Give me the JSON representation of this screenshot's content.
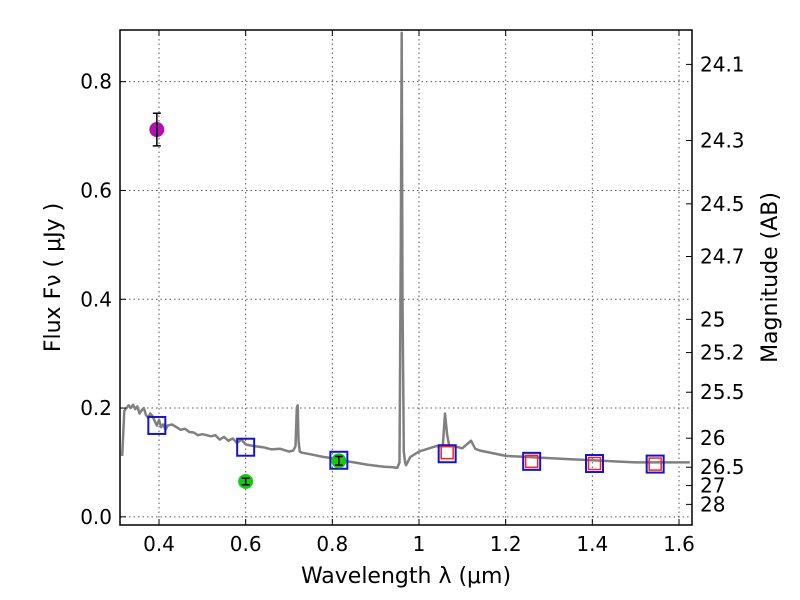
{
  "chart_data": {
    "type": "line",
    "title": "",
    "xlabel": "Wavelength  λ (μm)",
    "ylabel": "Flux  Fν  ( μJy )",
    "ylabel_right": "Magnitude (AB)",
    "xlim": [
      0.31,
      1.63
    ],
    "ylim": [
      -0.015,
      0.895
    ],
    "grid": true,
    "x_ticks": [
      0.4,
      0.6,
      0.8,
      1.0,
      1.2,
      1.4,
      1.6
    ],
    "x_tick_labels": [
      "0.4",
      "0.6",
      "0.8",
      "1",
      "1.2",
      "1.4",
      "1.6"
    ],
    "y_ticks": [
      0.0,
      0.2,
      0.4,
      0.6,
      0.8
    ],
    "y_tick_labels": [
      "0.0",
      "0.2",
      "0.4",
      "0.6",
      "0.8"
    ],
    "right_ticks": [
      {
        "label": "24.1",
        "mag": 24.1
      },
      {
        "label": "24.3",
        "mag": 24.3
      },
      {
        "label": "24.5",
        "mag": 24.5
      },
      {
        "label": "24.7",
        "mag": 24.7
      },
      {
        "label": "25",
        "mag": 25.0
      },
      {
        "label": "25.2",
        "mag": 25.2
      },
      {
        "label": "25.5",
        "mag": 25.5
      },
      {
        "label": "26",
        "mag": 26.0
      },
      {
        "label": "26.5",
        "mag": 26.5
      },
      {
        "label": "27",
        "mag": 27.0
      },
      {
        "label": "28",
        "mag": 28.0
      }
    ],
    "colors": {
      "model": "#808080",
      "model_photometry": "#1414c8",
      "observed_red": "#ff1e1e",
      "upper_point": "#b40fb4",
      "green_point": "#14c814",
      "error_bar": "#000000",
      "grid": "#000000",
      "frame": "#000000"
    },
    "series": [
      {
        "name": "model spectrum",
        "type": "line",
        "x": [
          0.315,
          0.32,
          0.325,
          0.33,
          0.335,
          0.34,
          0.345,
          0.35,
          0.355,
          0.36,
          0.365,
          0.37,
          0.375,
          0.38,
          0.385,
          0.39,
          0.395,
          0.4,
          0.405,
          0.41,
          0.415,
          0.42,
          0.43,
          0.44,
          0.45,
          0.46,
          0.47,
          0.48,
          0.49,
          0.5,
          0.51,
          0.52,
          0.53,
          0.54,
          0.55,
          0.56,
          0.57,
          0.58,
          0.59,
          0.6,
          0.62,
          0.64,
          0.66,
          0.68,
          0.7,
          0.71,
          0.715,
          0.718,
          0.72,
          0.722,
          0.725,
          0.73,
          0.75,
          0.78,
          0.8,
          0.82,
          0.85,
          0.88,
          0.9,
          0.92,
          0.94,
          0.95,
          0.955,
          0.958,
          0.96,
          0.962,
          0.965,
          0.968,
          0.97,
          0.98,
          1.0,
          1.02,
          1.04,
          1.055,
          1.06,
          1.065,
          1.07,
          1.08,
          1.1,
          1.12,
          1.13,
          1.14,
          1.2,
          1.25,
          1.3,
          1.35,
          1.4,
          1.45,
          1.5,
          1.55,
          1.6,
          1.625
        ],
        "y": [
          0.112,
          0.195,
          0.2,
          0.205,
          0.2,
          0.206,
          0.198,
          0.203,
          0.19,
          0.196,
          0.2,
          0.187,
          0.182,
          0.19,
          0.185,
          0.176,
          0.168,
          0.178,
          0.165,
          0.17,
          0.16,
          0.168,
          0.17,
          0.165,
          0.16,
          0.162,
          0.156,
          0.155,
          0.15,
          0.152,
          0.15,
          0.148,
          0.15,
          0.142,
          0.147,
          0.14,
          0.144,
          0.136,
          0.142,
          0.133,
          0.13,
          0.128,
          0.124,
          0.125,
          0.12,
          0.122,
          0.13,
          0.2,
          0.205,
          0.14,
          0.12,
          0.118,
          0.115,
          0.11,
          0.108,
          0.104,
          0.1,
          0.096,
          0.094,
          0.092,
          0.091,
          0.09,
          0.1,
          0.5,
          0.89,
          0.4,
          0.12,
          0.1,
          0.095,
          0.11,
          0.12,
          0.125,
          0.13,
          0.13,
          0.19,
          0.15,
          0.13,
          0.13,
          0.126,
          0.14,
          0.125,
          0.122,
          0.112,
          0.11,
          0.108,
          0.106,
          0.104,
          0.102,
          0.1,
          0.1,
          0.1,
          0.1
        ]
      },
      {
        "name": "model photometry",
        "type": "scatter",
        "marker": "square",
        "x": [
          0.395,
          0.6,
          0.815,
          1.065,
          1.26,
          1.405,
          1.545
        ],
        "y": [
          0.168,
          0.128,
          0.104,
          0.116,
          0.102,
          0.098,
          0.097
        ]
      },
      {
        "name": "observed photometry",
        "type": "scatter",
        "marker": "square",
        "x": [
          1.065,
          1.26,
          1.405,
          1.545
        ],
        "y": [
          0.118,
          0.102,
          0.098,
          0.097
        ]
      },
      {
        "name": "detection",
        "type": "scatter",
        "marker": "circle",
        "x": [
          0.395
        ],
        "y": [
          0.712
        ],
        "yerr": [
          0.03
        ]
      },
      {
        "name": "detection",
        "type": "scatter",
        "marker": "circle",
        "x": [
          0.6
        ],
        "y": [
          0.065
        ],
        "yerr": [
          0.0
        ]
      },
      {
        "name": "detection",
        "type": "scatter",
        "marker": "circle",
        "x": [
          0.815
        ],
        "y": [
          0.103
        ],
        "yerr": [
          0.008
        ]
      }
    ]
  }
}
